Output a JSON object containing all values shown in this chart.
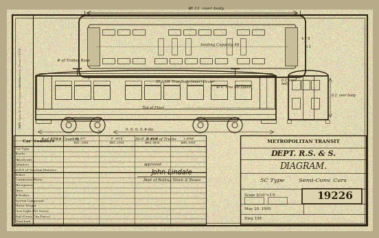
{
  "bg_color": "#b8ab8a",
  "paper_color": "#e6ddb8",
  "paper_color2": "#d8cfa0",
  "line_color": "#2a2010",
  "line_color_light": "#5a5035",
  "title_text": "METROPOLITAN TRANSIT",
  "dept_text": "DEPT. R.S. & S.",
  "diagram_text": "DIAGRAM.",
  "type_text": "5C Type        Semi-Conv. Cars",
  "scale_text": "Scale 3/16\"=1'0",
  "date_text": "May 20, 1905",
  "dwg_text": "Dwg 138",
  "number_box": "19226",
  "top_dimension": "48 11  over body",
  "floor_plan_label": "Seating Capacity 48",
  "trolley_label": "# of Trolley Base",
  "top_of_floor": "Top of Floor",
  "truck_centers": "36-9' & #o# of Trucks",
  "coupler_label": "# of #B## Coupling",
  "side_dim1": "50 1 1/8  True Body (inner) Heater",
  "side_dim2": "43 0  True Sill Space",
  "side_dim3": "4 7 8  +3/4",
  "side_dim4": "6 2  over body",
  "table_title": "Car Numbers",
  "col_headers": [
    "30-#7C\n1941-1960",
    "37-#0C#\n1941-1969",
    "18-#6C#\n3004-3034",
    "1-#30#\n1940-1969"
  ],
  "row_labels": [
    "Car Type",
    "Trucks",
    "Motor(cont.)",
    "Cylinders",
    "H.H.P. of Traction Motor(s)",
    "Brakes",
    "Continuous Watts",
    "Horsepower",
    "Drive",
    "# Brakes",
    "System Compound",
    "Motor Weight",
    "First Light (No Seats)",
    "Rail (Gross City Force)",
    "Total load"
  ],
  "signature": "John Lindale",
  "signature2": "Dept of Rolling Stock & Buses",
  "approved_text": "approved",
  "left_border_text": "MTA TYPE 5C SEMI-CONVERTIBLE CARS 1947",
  "image_number": "19226",
  "noise_alpha": 0.18
}
